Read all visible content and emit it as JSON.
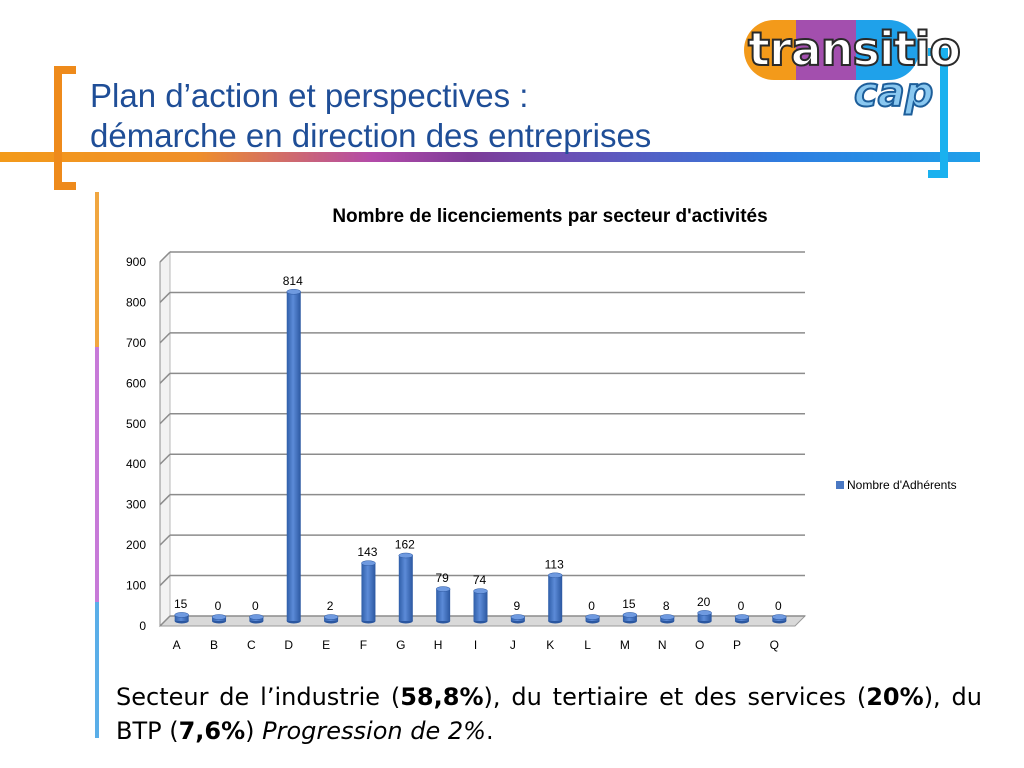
{
  "slide": {
    "title_line1": "Plan d’action et perspectives :",
    "title_line2": "démarche en direction des entreprises"
  },
  "logo": {
    "text_main": "transitio",
    "text_sub": "cap"
  },
  "colors": {
    "title": "#1f4e97",
    "bar": "#4a78c3",
    "bracket_left": "#ee8a1b",
    "bracket_right": "#1ab1ef"
  },
  "chart_data": {
    "type": "bar",
    "title": "Nombre de licenciements par secteur d'activités",
    "categories": [
      "A",
      "B",
      "C",
      "D",
      "E",
      "F",
      "G",
      "H",
      "I",
      "J",
      "K",
      "L",
      "M",
      "N",
      "O",
      "P",
      "Q"
    ],
    "series": [
      {
        "name": "Nombre d'Adhérents",
        "values": [
          15,
          0,
          0,
          814,
          2,
          143,
          162,
          79,
          74,
          9,
          113,
          0,
          15,
          8,
          20,
          0,
          0
        ]
      }
    ],
    "ylim": [
      0,
      900
    ],
    "yticks": [
      0,
      100,
      200,
      300,
      400,
      500,
      600,
      700,
      800,
      900
    ],
    "grid": true,
    "legend": "right"
  },
  "caption": {
    "t1": "Secteur de l’industrie (",
    "b1": "58,8%",
    "t2": "), du tertiaire et des services (",
    "b2": "20%",
    "t3": "), du BTP (",
    "b3": "7,6%",
    "t4": ") ",
    "i1": "Progression de 2%",
    "t5": "."
  }
}
